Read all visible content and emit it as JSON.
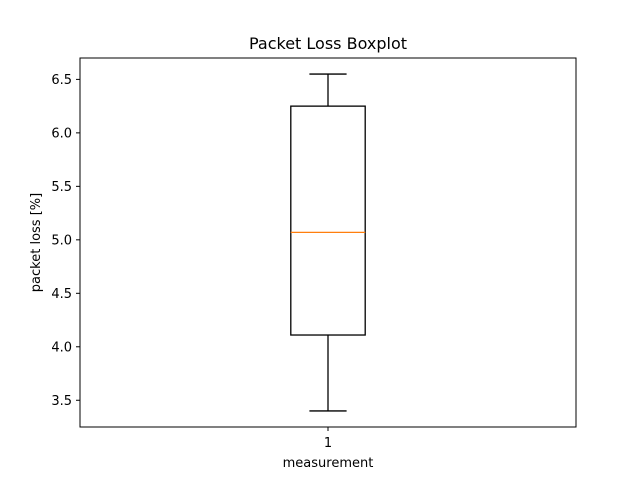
{
  "chart_data": {
    "type": "boxplot",
    "title": "Packet Loss Boxplot",
    "xlabel": "measurement",
    "ylabel": "packet loss [%]",
    "categories": [
      "1"
    ],
    "boxes": [
      {
        "label": "1",
        "whisker_low": 3.4,
        "q1": 4.11,
        "median": 5.07,
        "q3": 6.25,
        "whisker_high": 6.55
      }
    ],
    "ylim": [
      3.25,
      6.7
    ],
    "yticks": [
      3.5,
      4.0,
      4.5,
      5.0,
      5.5,
      6.0,
      6.5
    ],
    "ytick_labels": [
      "3.5",
      "4.0",
      "4.5",
      "5.0",
      "5.5",
      "6.0",
      "6.5"
    ],
    "grid": false,
    "colors": {
      "box": "#000000",
      "median": "#ff7f0e",
      "whisker": "#000000"
    }
  }
}
